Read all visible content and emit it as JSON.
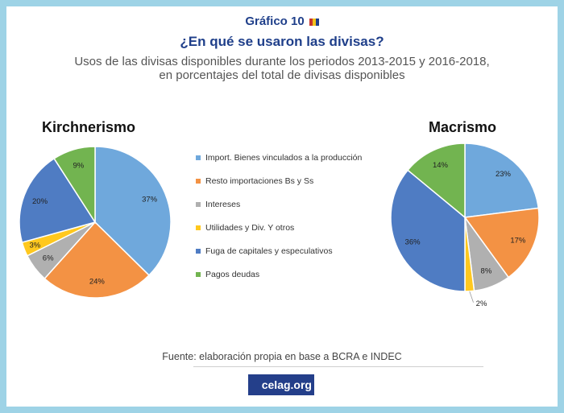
{
  "header": {
    "figure_label": "Gráfico 10",
    "title": "¿En qué se usaron las divisas?",
    "subtitle_line1": "Usos de las divisas disponibles durante los periodos 2013-2015 y 2016-2018,",
    "subtitle_line2": "en porcentajes del total de divisas disponibles"
  },
  "footer": {
    "source": "Fuente: elaboración propia en base a BCRA e INDEC",
    "logo_main": "celag",
    "logo_suffix": ".org"
  },
  "colors": {
    "frame": "#9ed3e6",
    "title": "#1f3f8a",
    "logo_bg": "#243f8a"
  },
  "chart_data": [
    {
      "type": "pie",
      "title": "Kirchnerismo",
      "categories": [
        "Import. Bienes vinculados a la producción",
        "Resto importaciones Bs y Ss",
        "Intereses",
        "Utilidades y Div. Y otros",
        "Fuga de capitales y especulativos",
        "Pagos deudas"
      ],
      "values": [
        37,
        24,
        6,
        3,
        20,
        9
      ],
      "labels": [
        "37%",
        "24%",
        "6%",
        "3%",
        "20%",
        "9%"
      ],
      "colors": [
        "#6fa8dc",
        "#f39244",
        "#b0b0b0",
        "#ffc81e",
        "#4f7cc3",
        "#72b450"
      ],
      "legend": "center"
    },
    {
      "type": "pie",
      "title": "Macrismo",
      "categories": [
        "Import. Bienes vinculados a la producción",
        "Resto importaciones Bs y Ss",
        "Intereses",
        "Utilidades y Div. Y otros",
        "Fuga de capitales y especulativos",
        "Pagos deudas"
      ],
      "values": [
        23,
        17,
        8,
        2,
        36,
        14
      ],
      "labels": [
        "23%",
        "17%",
        "8%",
        "2%",
        "36%",
        "14%"
      ],
      "colors": [
        "#6fa8dc",
        "#f39244",
        "#b0b0b0",
        "#ffc81e",
        "#4f7cc3",
        "#72b450"
      ],
      "legend": "center"
    }
  ]
}
